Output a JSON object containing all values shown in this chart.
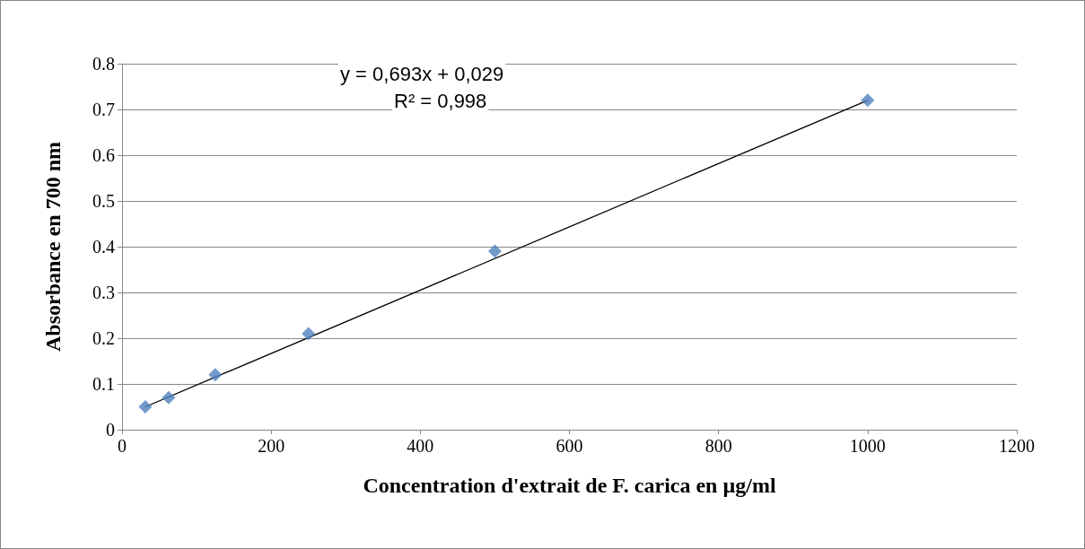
{
  "chart_data": {
    "type": "scatter",
    "xlabel": "Concentration d'extrait de F. carica en µg/ml",
    "ylabel": "Absorbance en 700 nm",
    "annotations": [
      "y = 0,693x + 0,029",
      "R² = 0,998"
    ],
    "series": [
      {
        "color": "#4f81bd",
        "marker": "diamond",
        "x": [
          31.25,
          62.5,
          125,
          250,
          500,
          1000
        ],
        "values": [
          0.05,
          0.07,
          0.12,
          0.21,
          0.39,
          0.72
        ]
      },
      {
        "type": "line",
        "color": "#000000",
        "line_style": "solid",
        "marker": "none",
        "x": [
          31.25,
          1000
        ],
        "values": [
          0.05,
          0.72
        ]
      }
    ],
    "xlim": [
      0,
      1200
    ],
    "xticks": [
      0,
      200,
      400,
      600,
      800,
      1000,
      1200
    ],
    "ylim": [
      0,
      0.8
    ],
    "yticks": [
      0,
      0.1,
      0.2,
      0.3,
      0.4,
      0.5,
      0.6,
      0.7,
      0.8
    ],
    "grid": "y"
  }
}
